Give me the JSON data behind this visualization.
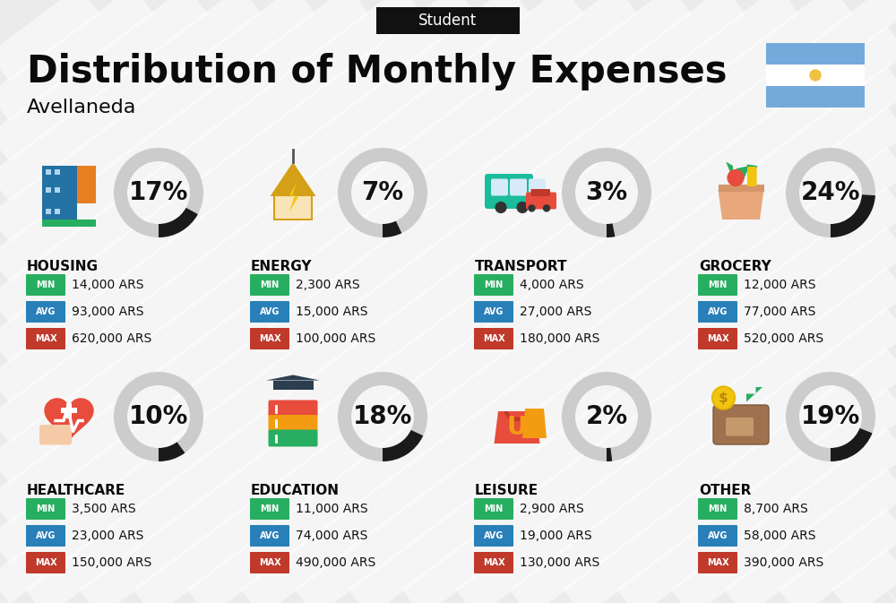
{
  "title": "Distribution of Monthly Expenses",
  "subtitle": "Student",
  "location": "Avellaneda",
  "bg_color": "#ebebeb",
  "stripe_color": "#ffffff",
  "categories": [
    {
      "name": "HOUSING",
      "pct": 17,
      "min": "14,000 ARS",
      "avg": "93,000 ARS",
      "max": "620,000 ARS",
      "row": 0,
      "col": 0
    },
    {
      "name": "ENERGY",
      "pct": 7,
      "min": "2,300 ARS",
      "avg": "15,000 ARS",
      "max": "100,000 ARS",
      "row": 0,
      "col": 1
    },
    {
      "name": "TRANSPORT",
      "pct": 3,
      "min": "4,000 ARS",
      "avg": "27,000 ARS",
      "max": "180,000 ARS",
      "row": 0,
      "col": 2
    },
    {
      "name": "GROCERY",
      "pct": 24,
      "min": "12,000 ARS",
      "avg": "77,000 ARS",
      "max": "520,000 ARS",
      "row": 0,
      "col": 3
    },
    {
      "name": "HEALTHCARE",
      "pct": 10,
      "min": "3,500 ARS",
      "avg": "23,000 ARS",
      "max": "150,000 ARS",
      "row": 1,
      "col": 0
    },
    {
      "name": "EDUCATION",
      "pct": 18,
      "min": "11,000 ARS",
      "avg": "74,000 ARS",
      "max": "490,000 ARS",
      "row": 1,
      "col": 1
    },
    {
      "name": "LEISURE",
      "pct": 2,
      "min": "2,900 ARS",
      "avg": "19,000 ARS",
      "max": "130,000 ARS",
      "row": 1,
      "col": 2
    },
    {
      "name": "OTHER",
      "pct": 19,
      "min": "8,700 ARS",
      "avg": "58,000 ARS",
      "max": "390,000 ARS",
      "row": 1,
      "col": 3
    }
  ],
  "min_color": "#27ae60",
  "avg_color": "#2980b9",
  "max_color": "#c0392b",
  "text_color": "#111111",
  "title_fontsize": 30,
  "subtitle_fontsize": 12,
  "pct_fontsize": 20,
  "cat_fontsize": 11,
  "val_fontsize": 10,
  "badge_label_fontsize": 7,
  "flag_blue": "#74aadb",
  "flag_white": "#ffffff",
  "flag_sun": "#f0c040",
  "donut_bg": "#cccccc",
  "donut_fg": "#1a1a1a"
}
